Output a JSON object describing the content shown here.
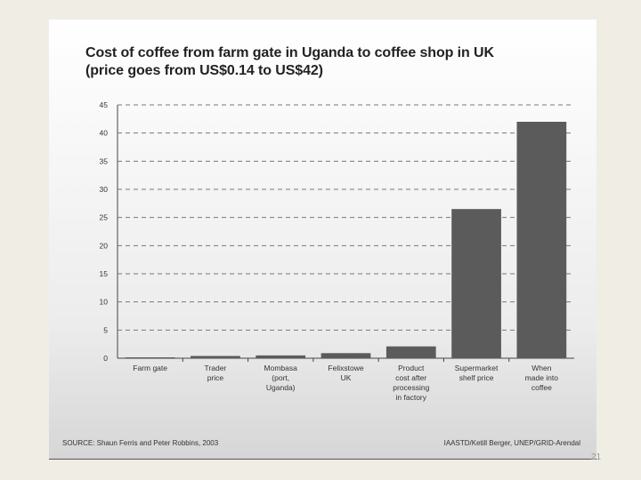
{
  "slide": {
    "title_lines": [
      "Cost of coffee from farm gate in Uganda to coffee shop in UK",
      "(price goes from US$0.14 to US$42)"
    ],
    "source": "SOURCE: Shaun Ferris and Peter Robbins, 2003",
    "credit": "IAASTD/Ketill Berger, UNEP/GRID-Arendal",
    "page_number": "21"
  },
  "colors": {
    "bar": "#5b5b5b",
    "gridline": "#777777",
    "panel": "#ffffff"
  },
  "chart_data": {
    "type": "bar",
    "title": "Cost of coffee from farm gate in Uganda to coffee shop in UK (price goes from US$0.14 to US$42)",
    "categories": [
      [
        "Farm gate"
      ],
      [
        "Trader",
        "price"
      ],
      [
        "Mombasa",
        "(port,",
        "Uganda)"
      ],
      [
        "Felixstowe",
        "UK"
      ],
      [
        "Product",
        "cost after",
        "processing",
        "in factory"
      ],
      [
        "Supermarket",
        "shelf price"
      ],
      [
        "When",
        "made into",
        "coffee"
      ]
    ],
    "values": [
      0.14,
      0.4,
      0.5,
      0.9,
      2.1,
      26.5,
      42
    ],
    "ylim": [
      0,
      45
    ],
    "yticks": [
      0,
      5,
      10,
      15,
      20,
      25,
      30,
      35,
      40,
      45
    ],
    "grid": true,
    "grid_style": "dashed",
    "legend": "none"
  }
}
